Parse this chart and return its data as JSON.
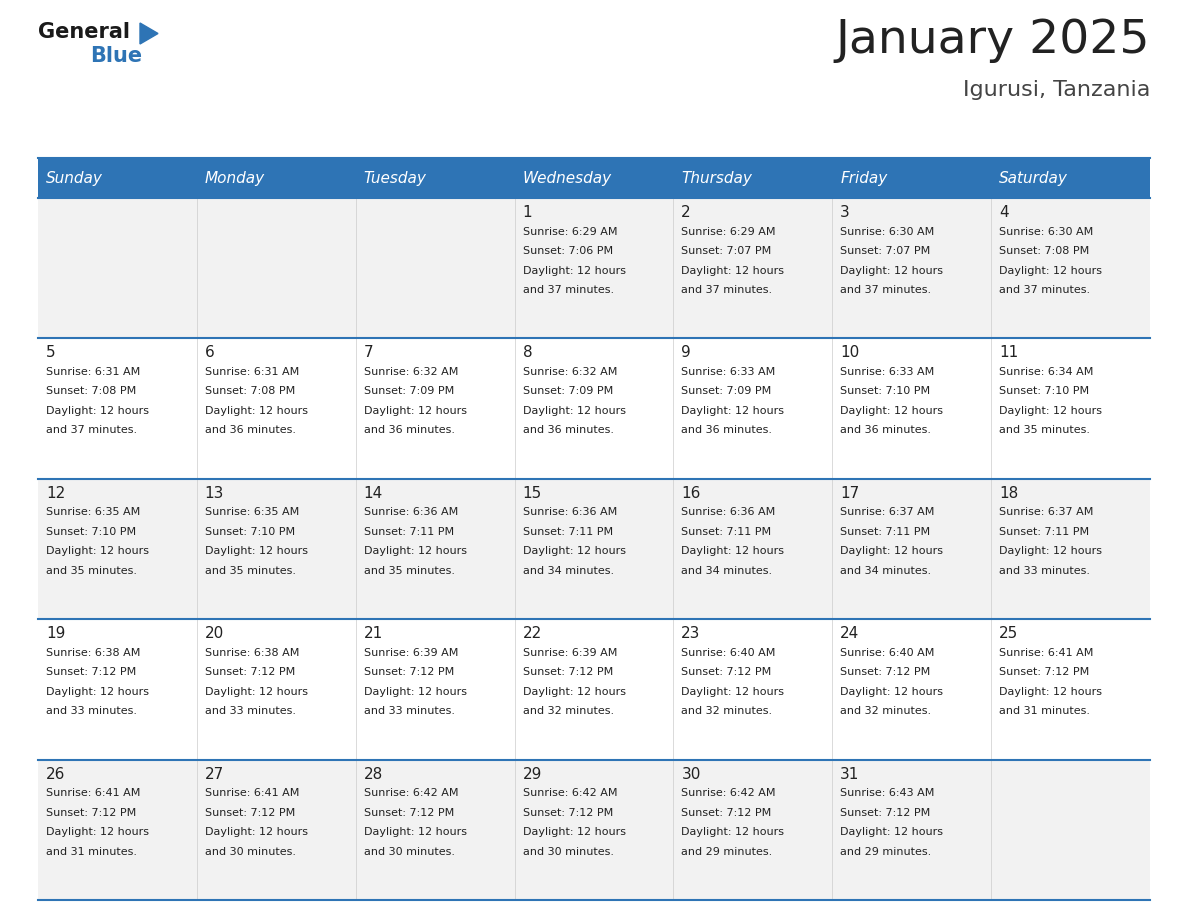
{
  "title": "January 2025",
  "subtitle": "Igurusi, Tanzania",
  "days_of_week": [
    "Sunday",
    "Monday",
    "Tuesday",
    "Wednesday",
    "Thursday",
    "Friday",
    "Saturday"
  ],
  "header_bg": "#2E74B5",
  "header_text": "#FFFFFF",
  "cell_bg_odd": "#F2F2F2",
  "cell_bg_even": "#FFFFFF",
  "border_color": "#2E74B5",
  "row_divider_color": "#2E74B5",
  "text_color": "#222222",
  "title_color": "#222222",
  "subtitle_color": "#444444",
  "calendar_data": [
    [
      null,
      null,
      null,
      {
        "day": 1,
        "sunrise": "6:29 AM",
        "sunset": "7:06 PM",
        "daylight": "12 hours",
        "daylight2": "and 37 minutes."
      },
      {
        "day": 2,
        "sunrise": "6:29 AM",
        "sunset": "7:07 PM",
        "daylight": "12 hours",
        "daylight2": "and 37 minutes."
      },
      {
        "day": 3,
        "sunrise": "6:30 AM",
        "sunset": "7:07 PM",
        "daylight": "12 hours",
        "daylight2": "and 37 minutes."
      },
      {
        "day": 4,
        "sunrise": "6:30 AM",
        "sunset": "7:08 PM",
        "daylight": "12 hours",
        "daylight2": "and 37 minutes."
      }
    ],
    [
      {
        "day": 5,
        "sunrise": "6:31 AM",
        "sunset": "7:08 PM",
        "daylight": "12 hours",
        "daylight2": "and 37 minutes."
      },
      {
        "day": 6,
        "sunrise": "6:31 AM",
        "sunset": "7:08 PM",
        "daylight": "12 hours",
        "daylight2": "and 36 minutes."
      },
      {
        "day": 7,
        "sunrise": "6:32 AM",
        "sunset": "7:09 PM",
        "daylight": "12 hours",
        "daylight2": "and 36 minutes."
      },
      {
        "day": 8,
        "sunrise": "6:32 AM",
        "sunset": "7:09 PM",
        "daylight": "12 hours",
        "daylight2": "and 36 minutes."
      },
      {
        "day": 9,
        "sunrise": "6:33 AM",
        "sunset": "7:09 PM",
        "daylight": "12 hours",
        "daylight2": "and 36 minutes."
      },
      {
        "day": 10,
        "sunrise": "6:33 AM",
        "sunset": "7:10 PM",
        "daylight": "12 hours",
        "daylight2": "and 36 minutes."
      },
      {
        "day": 11,
        "sunrise": "6:34 AM",
        "sunset": "7:10 PM",
        "daylight": "12 hours",
        "daylight2": "and 35 minutes."
      }
    ],
    [
      {
        "day": 12,
        "sunrise": "6:35 AM",
        "sunset": "7:10 PM",
        "daylight": "12 hours",
        "daylight2": "and 35 minutes."
      },
      {
        "day": 13,
        "sunrise": "6:35 AM",
        "sunset": "7:10 PM",
        "daylight": "12 hours",
        "daylight2": "and 35 minutes."
      },
      {
        "day": 14,
        "sunrise": "6:36 AM",
        "sunset": "7:11 PM",
        "daylight": "12 hours",
        "daylight2": "and 35 minutes."
      },
      {
        "day": 15,
        "sunrise": "6:36 AM",
        "sunset": "7:11 PM",
        "daylight": "12 hours",
        "daylight2": "and 34 minutes."
      },
      {
        "day": 16,
        "sunrise": "6:36 AM",
        "sunset": "7:11 PM",
        "daylight": "12 hours",
        "daylight2": "and 34 minutes."
      },
      {
        "day": 17,
        "sunrise": "6:37 AM",
        "sunset": "7:11 PM",
        "daylight": "12 hours",
        "daylight2": "and 34 minutes."
      },
      {
        "day": 18,
        "sunrise": "6:37 AM",
        "sunset": "7:11 PM",
        "daylight": "12 hours",
        "daylight2": "and 33 minutes."
      }
    ],
    [
      {
        "day": 19,
        "sunrise": "6:38 AM",
        "sunset": "7:12 PM",
        "daylight": "12 hours",
        "daylight2": "and 33 minutes."
      },
      {
        "day": 20,
        "sunrise": "6:38 AM",
        "sunset": "7:12 PM",
        "daylight": "12 hours",
        "daylight2": "and 33 minutes."
      },
      {
        "day": 21,
        "sunrise": "6:39 AM",
        "sunset": "7:12 PM",
        "daylight": "12 hours",
        "daylight2": "and 33 minutes."
      },
      {
        "day": 22,
        "sunrise": "6:39 AM",
        "sunset": "7:12 PM",
        "daylight": "12 hours",
        "daylight2": "and 32 minutes."
      },
      {
        "day": 23,
        "sunrise": "6:40 AM",
        "sunset": "7:12 PM",
        "daylight": "12 hours",
        "daylight2": "and 32 minutes."
      },
      {
        "day": 24,
        "sunrise": "6:40 AM",
        "sunset": "7:12 PM",
        "daylight": "12 hours",
        "daylight2": "and 32 minutes."
      },
      {
        "day": 25,
        "sunrise": "6:41 AM",
        "sunset": "7:12 PM",
        "daylight": "12 hours",
        "daylight2": "and 31 minutes."
      }
    ],
    [
      {
        "day": 26,
        "sunrise": "6:41 AM",
        "sunset": "7:12 PM",
        "daylight": "12 hours",
        "daylight2": "and 31 minutes."
      },
      {
        "day": 27,
        "sunrise": "6:41 AM",
        "sunset": "7:12 PM",
        "daylight": "12 hours",
        "daylight2": "and 30 minutes."
      },
      {
        "day": 28,
        "sunrise": "6:42 AM",
        "sunset": "7:12 PM",
        "daylight": "12 hours",
        "daylight2": "and 30 minutes."
      },
      {
        "day": 29,
        "sunrise": "6:42 AM",
        "sunset": "7:12 PM",
        "daylight": "12 hours",
        "daylight2": "and 30 minutes."
      },
      {
        "day": 30,
        "sunrise": "6:42 AM",
        "sunset": "7:12 PM",
        "daylight": "12 hours",
        "daylight2": "and 29 minutes."
      },
      {
        "day": 31,
        "sunrise": "6:43 AM",
        "sunset": "7:12 PM",
        "daylight": "12 hours",
        "daylight2": "and 29 minutes."
      },
      null
    ]
  ]
}
